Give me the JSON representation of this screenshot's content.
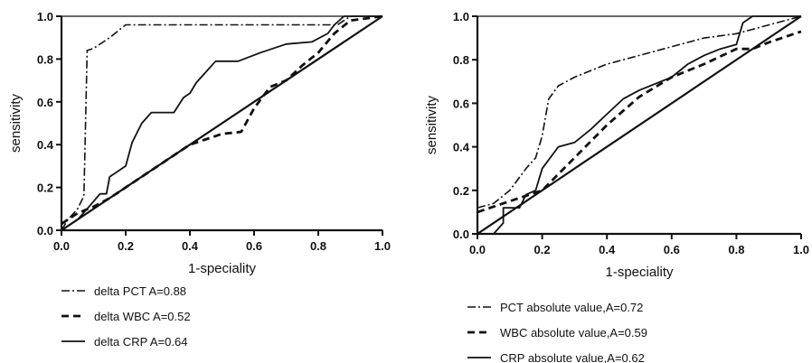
{
  "chart_data": [
    {
      "type": "line",
      "title": "",
      "xlabel": "1-speciality",
      "ylabel": "sensitivity",
      "xlim": [
        0,
        1.0
      ],
      "ylim": [
        0,
        1.0
      ],
      "x_ticks": [
        "0.0",
        "0.2",
        "0.4",
        "0.6",
        "0.8",
        "1.0"
      ],
      "y_ticks": [
        "0.0",
        "0.2",
        "0.4",
        "0.6",
        "0.8",
        "1.0"
      ],
      "grid": false,
      "legend_position": "bottom-left",
      "reference_line": [
        [
          0,
          0
        ],
        [
          1,
          1
        ]
      ],
      "series": [
        {
          "name": "delta PCT A=0.88",
          "style": "dash-dot",
          "points": [
            [
              0,
              0
            ],
            [
              0.02,
              0.05
            ],
            [
              0.05,
              0.1
            ],
            [
              0.07,
              0.16
            ],
            [
              0.08,
              0.84
            ],
            [
              0.1,
              0.85
            ],
            [
              0.15,
              0.9
            ],
            [
              0.2,
              0.96
            ],
            [
              0.3,
              0.96
            ],
            [
              0.5,
              0.96
            ],
            [
              0.7,
              0.96
            ],
            [
              0.86,
              0.96
            ],
            [
              0.9,
              1.0
            ],
            [
              1.0,
              1.0
            ]
          ]
        },
        {
          "name": "delta WBC A=0.52",
          "style": "dashed",
          "points": [
            [
              0,
              0.03
            ],
            [
              0.05,
              0.08
            ],
            [
              0.1,
              0.11
            ],
            [
              0.15,
              0.15
            ],
            [
              0.2,
              0.2
            ],
            [
              0.3,
              0.3
            ],
            [
              0.4,
              0.4
            ],
            [
              0.5,
              0.45
            ],
            [
              0.56,
              0.46
            ],
            [
              0.6,
              0.57
            ],
            [
              0.65,
              0.67
            ],
            [
              0.7,
              0.7
            ],
            [
              0.75,
              0.77
            ],
            [
              0.8,
              0.83
            ],
            [
              0.85,
              0.92
            ],
            [
              0.9,
              0.98
            ],
            [
              1.0,
              1.0
            ]
          ]
        },
        {
          "name": "delta CRP A=0.64",
          "style": "solid",
          "points": [
            [
              0,
              0
            ],
            [
              0.05,
              0.05
            ],
            [
              0.08,
              0.1
            ],
            [
              0.12,
              0.17
            ],
            [
              0.14,
              0.17
            ],
            [
              0.15,
              0.25
            ],
            [
              0.2,
              0.3
            ],
            [
              0.22,
              0.41
            ],
            [
              0.25,
              0.5
            ],
            [
              0.28,
              0.55
            ],
            [
              0.35,
              0.55
            ],
            [
              0.38,
              0.62
            ],
            [
              0.4,
              0.64
            ],
            [
              0.42,
              0.69
            ],
            [
              0.45,
              0.74
            ],
            [
              0.48,
              0.79
            ],
            [
              0.55,
              0.79
            ],
            [
              0.62,
              0.83
            ],
            [
              0.7,
              0.87
            ],
            [
              0.78,
              0.88
            ],
            [
              0.83,
              0.92
            ],
            [
              0.85,
              0.96
            ],
            [
              0.88,
              1.0
            ],
            [
              1.0,
              1.0
            ]
          ]
        }
      ]
    },
    {
      "type": "line",
      "title": "",
      "xlabel": "1-speciality",
      "ylabel": "sensitivity",
      "xlim": [
        0,
        1.0
      ],
      "ylim": [
        0,
        1.0
      ],
      "x_ticks": [
        "0.0",
        "0.2",
        "0.4",
        "0.6",
        "0.8",
        "1.0"
      ],
      "y_ticks": [
        "0.0",
        "0.2",
        "0.4",
        "0.6",
        "0.8",
        "1.0"
      ],
      "grid": false,
      "legend_position": "bottom-left",
      "reference_line": [
        [
          0,
          0
        ],
        [
          1,
          1
        ]
      ],
      "series": [
        {
          "name": "PCT absolute value,A=0.72",
          "style": "dash-dot",
          "points": [
            [
              0,
              0.12
            ],
            [
              0.05,
              0.14
            ],
            [
              0.1,
              0.2
            ],
            [
              0.15,
              0.3
            ],
            [
              0.18,
              0.35
            ],
            [
              0.2,
              0.45
            ],
            [
              0.22,
              0.62
            ],
            [
              0.25,
              0.68
            ],
            [
              0.3,
              0.72
            ],
            [
              0.4,
              0.78
            ],
            [
              0.5,
              0.82
            ],
            [
              0.6,
              0.86
            ],
            [
              0.7,
              0.9
            ],
            [
              0.8,
              0.92
            ],
            [
              0.9,
              0.96
            ],
            [
              1.0,
              1.0
            ]
          ]
        },
        {
          "name": "WBC absolute value,A=0.59",
          "style": "dashed",
          "points": [
            [
              0,
              0.1
            ],
            [
              0.1,
              0.15
            ],
            [
              0.2,
              0.2
            ],
            [
              0.3,
              0.35
            ],
            [
              0.4,
              0.5
            ],
            [
              0.5,
              0.63
            ],
            [
              0.6,
              0.72
            ],
            [
              0.7,
              0.78
            ],
            [
              0.8,
              0.85
            ],
            [
              0.85,
              0.85
            ],
            [
              0.9,
              0.88
            ],
            [
              1.0,
              0.93
            ]
          ]
        },
        {
          "name": "CRP absolute value,A=0.62",
          "style": "solid",
          "points": [
            [
              0,
              0
            ],
            [
              0.05,
              0
            ],
            [
              0.08,
              0.05
            ],
            [
              0.08,
              0.12
            ],
            [
              0.13,
              0.12
            ],
            [
              0.15,
              0.18
            ],
            [
              0.18,
              0.2
            ],
            [
              0.2,
              0.3
            ],
            [
              0.25,
              0.4
            ],
            [
              0.3,
              0.42
            ],
            [
              0.35,
              0.48
            ],
            [
              0.4,
              0.55
            ],
            [
              0.45,
              0.62
            ],
            [
              0.5,
              0.66
            ],
            [
              0.6,
              0.72
            ],
            [
              0.65,
              0.78
            ],
            [
              0.7,
              0.82
            ],
            [
              0.75,
              0.85
            ],
            [
              0.8,
              0.87
            ],
            [
              0.82,
              0.97
            ],
            [
              0.85,
              1.0
            ],
            [
              1.0,
              1.0
            ]
          ]
        }
      ]
    }
  ]
}
